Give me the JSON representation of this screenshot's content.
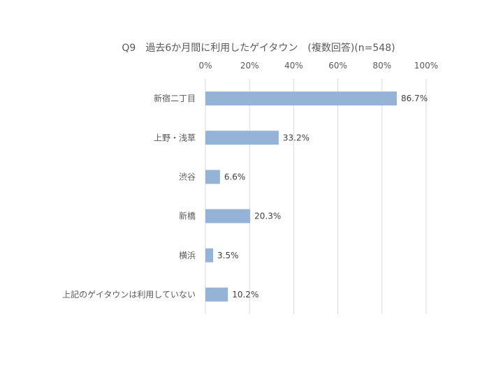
{
  "chart_data": {
    "type": "bar",
    "orientation": "horizontal",
    "title": "Q9　過去6か月間に利用したゲイタウン　(複数回答)(n=548)",
    "categories": [
      "新宿二丁目",
      "上野・浅草",
      "渋谷",
      "新橋",
      "横浜",
      "上記のゲイタウンは利用していない"
    ],
    "values": [
      86.7,
      33.2,
      6.6,
      20.3,
      3.5,
      10.2
    ],
    "data_labels": [
      "86.7%",
      "33.2%",
      "6.6%",
      "20.3%",
      "3.5%",
      "10.2%"
    ],
    "xlim": [
      0,
      100
    ],
    "x_ticks": [
      0,
      20,
      40,
      60,
      80,
      100
    ],
    "x_tick_labels": [
      "0%",
      "20%",
      "40%",
      "60%",
      "80%",
      "100%"
    ],
    "xlabel": "",
    "ylabel": "",
    "grid": true,
    "legend": "none",
    "bar_color": "#95b3d7"
  }
}
